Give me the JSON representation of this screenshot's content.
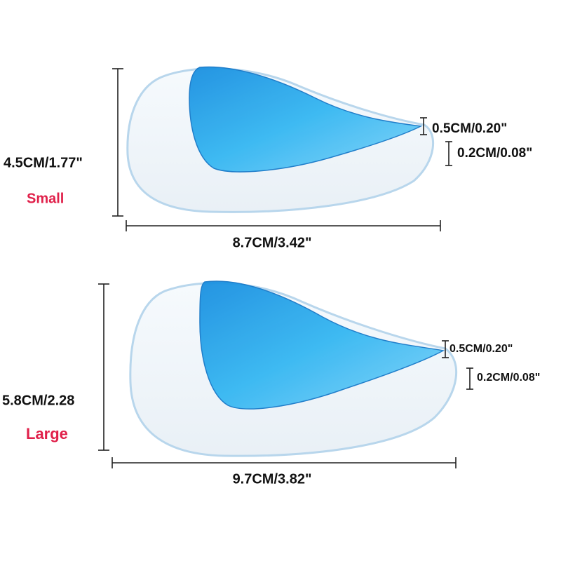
{
  "products": [
    {
      "size": "Small",
      "height": "4.5CM/1.77\"",
      "width": "8.7CM/3.42\"",
      "arch_thickness": "0.5CM/0.20\"",
      "heel_thickness": "0.2CM/0.08\""
    },
    {
      "size": "Large",
      "height": "5.8CM/2.28",
      "width": "9.7CM/3.82\"",
      "arch_thickness": "0.5CM/0.20\"",
      "heel_thickness": "0.2CM/0.08\""
    }
  ]
}
